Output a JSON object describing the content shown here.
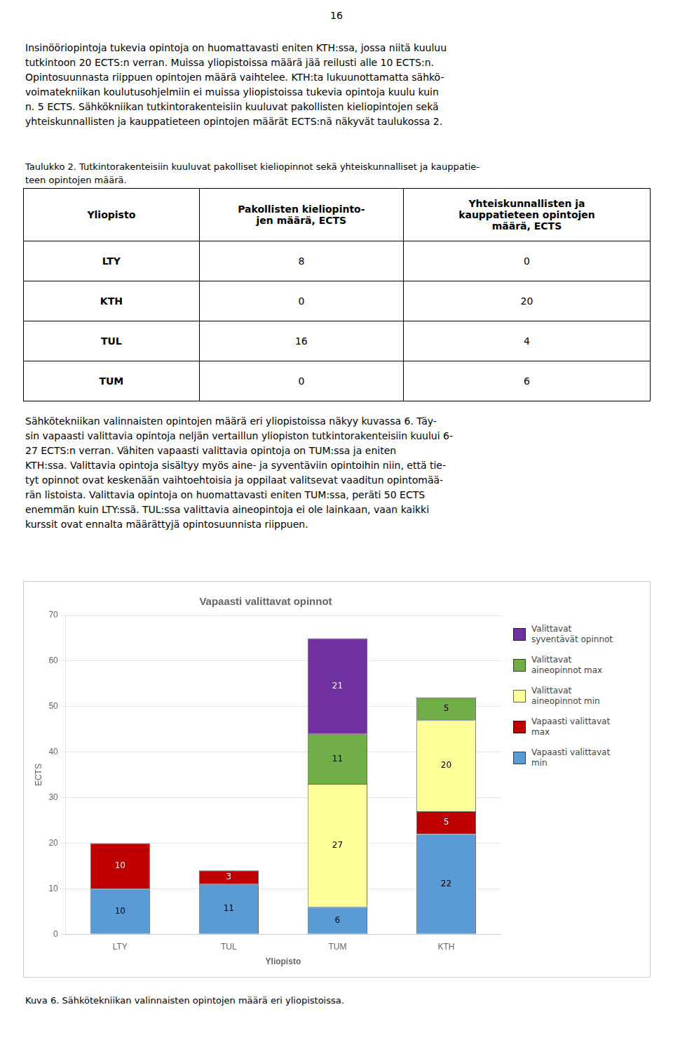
{
  "page_number": "16",
  "paragraph_1": [
    "Insinööriopintoja tukevia opintoja on huomattavasti eniten KTH:ssa, jossa niitä kuuluu",
    "tutkintoon 20 ECTS:n verran. Muissa yliopistoissa määrä jää reilusti alle 10 ECTS:n.",
    "Opintosuunnasta riippuen opintojen määrä vaihtelee. KTH:ta lukuunottamatta sähkö-",
    "voimatekniikan koulutusohjelmiin ei muissa yliopistoissa tukevia opintoja kuulu kuin",
    "n. 5 ECTS. Sähkökniikan tutkintorakenteisiin kuuluvat pakollisten kieliopintojen sekä",
    "yhteiskunnallisten ja kauppatieteen opintojen määrät ECTS:nä näkyvät taulukossa 2."
  ],
  "table": {
    "caption": [
      "Taulukko 2. Tutkintorakenteisiin kuuluvat pakolliset kieliopinnot sekä yhteiskunnalliset ja kauppatie-",
      "teen opintojen määrä."
    ],
    "header": [
      "Yliopisto",
      "Pakollisten kieliopinto-\njen määrä, ECTS",
      "Yhteiskunnallisten ja\nkauppatieteen opintojen\nmäärä, ECTS"
    ],
    "rows": [
      [
        "LTY",
        "8",
        "0"
      ],
      [
        "KTH",
        "0",
        "20"
      ],
      [
        "TUL",
        "16",
        "4"
      ],
      [
        "TUM",
        "0",
        "6"
      ]
    ]
  },
  "paragraph_2": [
    "Sähkötekniikan valinnaisten opintojen määrä eri yliopistoissa näkyy kuvassa 6. Täy-",
    "sin vapaasti valittavia opintoja neljän vertaillun yliopiston tutkintorakenteisiin kuului 6-",
    "27 ECTS:n verran.  Vähiten vapaasti valittavia opintoja on TUM:ssa ja eniten",
    "KTH:ssa. Valittavia opintoja sisältyy myös aine- ja syventäviin opintoihin niin, että tie-",
    "tyt opinnot ovat keskenään vaihtoehtoisia ja oppilaat valitsevat vaaditun opintomää-",
    "rän listoista. Valittavia opintoja on huomattavasti eniten TUM:ssa, peräti 50 ECTS",
    "enemmän kuin LTY:ssä.  TUL:ssa valittavia aineopintoja ei ole lainkaan, vaan kaikki",
    "kurssit ovat ennalta määrättyjä opintosuunnista riippuen."
  ],
  "chart_data": {
    "type": "bar",
    "title": "Vapaasti valittavat opinnot",
    "x_label": "Yliopisto",
    "y_label": "ECTS",
    "categories": [
      "LTY",
      "TUL",
      "TUM",
      "KTH"
    ],
    "series": [
      {
        "name": "Vapaasti valittavat\nmin",
        "color": "#5B9BD5",
        "values": [
          10,
          11,
          6,
          22
        ]
      },
      {
        "name": "Vapaasti valittavat\nmax",
        "color": "#C00000",
        "values": [
          10,
          3,
          0,
          5
        ]
      },
      {
        "name": "Valittavat\naineopinnot min",
        "color": "#FFFF99",
        "values": [
          0,
          0,
          27,
          20
        ]
      },
      {
        "name": "Valittavat\naineopinnot max",
        "color": "#70AD47",
        "values": [
          0,
          0,
          11,
          5
        ]
      },
      {
        "name": "Valittavat\nsyventävät opinnot",
        "color": "#7030A0",
        "values": [
          0,
          0,
          21,
          0
        ]
      }
    ],
    "ylim": [
      0,
      70
    ],
    "yticks": [
      0,
      10,
      20,
      30,
      40,
      50,
      60,
      70
    ],
    "stacked": true,
    "grid": true,
    "legend": "right",
    "data_labels": true
  },
  "figure_caption": "Kuva 6. Sähkötekniikan valinnaisten opintojen määrä eri yliopistoissa."
}
